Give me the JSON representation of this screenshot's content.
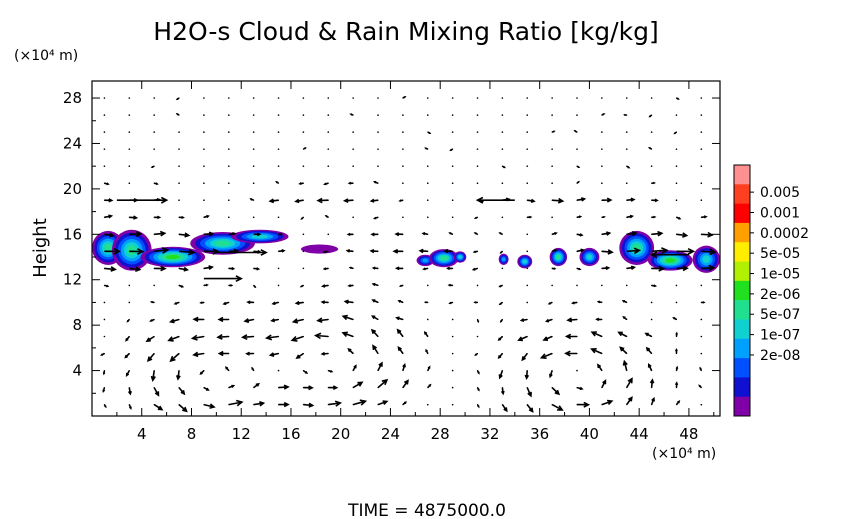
{
  "chart_data": {
    "type": "heatmap",
    "title": "H2O-s Cloud & Rain Mixing Ratio [kg/kg]",
    "xlabel": "",
    "x_unit": "(×10⁴ m)",
    "ylabel": "Height",
    "y_unit": "(×10⁴ m)",
    "xlim": [
      0,
      50.5
    ],
    "ylim": [
      0,
      29.5
    ],
    "x_ticks": [
      4,
      8,
      12,
      16,
      20,
      24,
      28,
      32,
      36,
      40,
      44,
      48
    ],
    "x_tick_labels": [
      "4",
      "8",
      "12",
      "16",
      "20",
      "24",
      "28",
      "32",
      "36",
      "40",
      "44",
      "48"
    ],
    "y_ticks": [
      4,
      8,
      12,
      16,
      20,
      24,
      28
    ],
    "y_tick_labels": [
      "4",
      "8",
      "12",
      "16",
      "20",
      "24",
      "28"
    ],
    "grid": "dotted",
    "legend_position": "right",
    "color_scale": {
      "labels": [
        "0.005",
        "0.001",
        "0.0002",
        "5e-05",
        "1e-05",
        "2e-06",
        "5e-07",
        "1e-07",
        "2e-08"
      ],
      "colors": [
        "#ff9090",
        "#ff4020",
        "#ff0000",
        "#ffa000",
        "#ffee00",
        "#b0f000",
        "#20e020",
        "#20e090",
        "#10d0d0",
        "#00a0ff",
        "#0050ff",
        "#1010d0",
        "#8000a8"
      ]
    },
    "cloud_regions": [
      {
        "x": 1.3,
        "y": 14.8,
        "rx": 1.3,
        "ry": 1.5,
        "level": 6
      },
      {
        "x": 3.2,
        "y": 14.6,
        "rx": 1.6,
        "ry": 1.8,
        "level": 6
      },
      {
        "x": 6.5,
        "y": 14.0,
        "rx": 2.6,
        "ry": 0.9,
        "level": 7
      },
      {
        "x": 10.5,
        "y": 15.2,
        "rx": 2.6,
        "ry": 1.0,
        "level": 6
      },
      {
        "x": 13.5,
        "y": 15.8,
        "rx": 2.3,
        "ry": 0.6,
        "level": 5
      },
      {
        "x": 18.3,
        "y": 14.7,
        "rx": 1.5,
        "ry": 0.4,
        "level": 1
      },
      {
        "x": 26.8,
        "y": 13.7,
        "rx": 0.7,
        "ry": 0.5,
        "level": 4
      },
      {
        "x": 28.3,
        "y": 13.9,
        "rx": 1.2,
        "ry": 0.8,
        "level": 6
      },
      {
        "x": 29.6,
        "y": 14.0,
        "rx": 0.5,
        "ry": 0.5,
        "level": 5
      },
      {
        "x": 33.1,
        "y": 13.8,
        "rx": 0.4,
        "ry": 0.5,
        "level": 4
      },
      {
        "x": 34.8,
        "y": 13.6,
        "rx": 0.6,
        "ry": 0.6,
        "level": 5
      },
      {
        "x": 37.5,
        "y": 14.0,
        "rx": 0.7,
        "ry": 0.8,
        "level": 6
      },
      {
        "x": 40.0,
        "y": 14.0,
        "rx": 0.8,
        "ry": 0.8,
        "level": 5
      },
      {
        "x": 43.8,
        "y": 14.8,
        "rx": 1.4,
        "ry": 1.5,
        "level": 6
      },
      {
        "x": 46.5,
        "y": 13.7,
        "rx": 1.8,
        "ry": 0.9,
        "level": 7
      },
      {
        "x": 49.4,
        "y": 13.8,
        "rx": 1.1,
        "ry": 1.2,
        "level": 5
      }
    ],
    "wind_field": {
      "eddies": [
        {
          "x": 9.5,
          "y": 3.5
        },
        {
          "x": 19.5,
          "y": 4.5
        },
        {
          "x": 39.0,
          "y": 3.5
        }
      ],
      "long_vectors": [
        {
          "x0": 2,
          "y0": 19.0,
          "x1": 6,
          "y1": 19.0
        },
        {
          "x0": 34,
          "y0": 19.0,
          "x1": 31,
          "y1": 19.0
        },
        {
          "x0": 10,
          "y0": 14.4,
          "x1": 14,
          "y1": 14.4
        },
        {
          "x0": 48,
          "y0": 14.2,
          "x1": 45,
          "y1": 14.2
        },
        {
          "x0": 9,
          "y0": 12.1,
          "x1": 12,
          "y1": 12.1
        }
      ]
    },
    "footer": "TIME  =  4875000.0"
  }
}
